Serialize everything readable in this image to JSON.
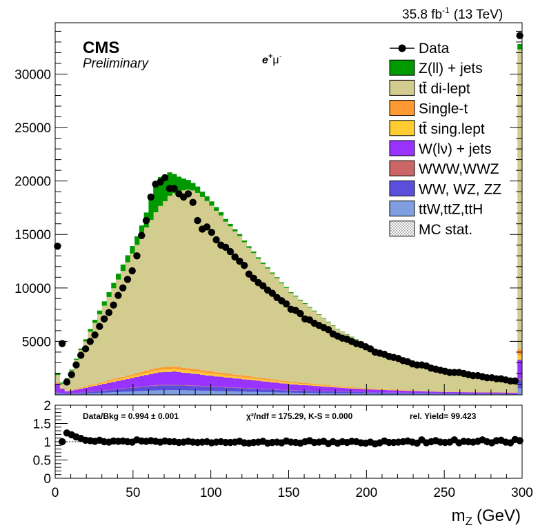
{
  "header": {
    "lumi": "35.8 fb",
    "lumi_exp": "-1",
    "energy": "(13 TeV)",
    "cms": "CMS",
    "preliminary": "Preliminary",
    "channel_base": "e",
    "channel_sup1": "+",
    "channel_mu": "μ",
    "channel_sup2": "-"
  },
  "legend": [
    {
      "label": "Data",
      "color": "#000000",
      "style": "marker"
    },
    {
      "label": "Z(ll) + jets",
      "color": "#009900",
      "style": "fill"
    },
    {
      "label": "tt̄ di-lept",
      "color": "#d2cc8e",
      "style": "fill"
    },
    {
      "label": "Single-t",
      "color": "#ff9933",
      "style": "fill"
    },
    {
      "label": "tt̄ sing.lept",
      "color": "#ffcc33",
      "style": "fill"
    },
    {
      "label": "W(lν) + jets",
      "color": "#9933ff",
      "style": "fill"
    },
    {
      "label": "WWW,WWZ",
      "color": "#cc6666",
      "style": "fill"
    },
    {
      "label": "WW, WZ, ZZ",
      "color": "#5a4fdb",
      "style": "fill"
    },
    {
      "label": "ttW,ttZ,ttH",
      "color": "#7f9fe0",
      "style": "fill"
    },
    {
      "label": "MC stat.",
      "color": "#ffffff",
      "style": "hatch"
    }
  ],
  "ratio_text": {
    "data_bkg": "Data/Bkg = 0.994 ± 0.001",
    "chi2": "χ²/ndf = 175.29,   K-S = 0.000",
    "yield": "rel. Yield= 99.423"
  },
  "chart_data": {
    "type": "bar",
    "xlabel": "m",
    "xlabel_sub": "Z",
    "xlabel_unit": "(GeV)",
    "xlim": [
      0,
      300
    ],
    "ylim": [
      0,
      34800
    ],
    "ratio_ylim": [
      0,
      2
    ],
    "x_ticks": [
      "0",
      "50",
      "100",
      "150",
      "200",
      "250",
      "300"
    ],
    "y_ticks": [
      "5000",
      "10000",
      "15000",
      "20000",
      "25000",
      "30000"
    ],
    "ratio_ticks": [
      "0",
      "0.5",
      "1",
      "1.5",
      "2"
    ],
    "bin_width": 3,
    "data_x": [
      1.5,
      4.5,
      7.5,
      10.5,
      13.5,
      16.5,
      19.5,
      22.5,
      25.5,
      28.5,
      31.5,
      34.5,
      37.5,
      40.5,
      43.5,
      46.5,
      49.5,
      52.5,
      55.5,
      58.5,
      61.5,
      64.5,
      67.5,
      70.5,
      73.5,
      76.5,
      79.5,
      82.5,
      85.5,
      88.5,
      91.5,
      94.5,
      97.5,
      100.5,
      103.5,
      106.5,
      109.5,
      112.5,
      115.5,
      118.5,
      121.5,
      124.5,
      127.5,
      130.5,
      133.5,
      136.5,
      139.5,
      142.5,
      145.5,
      148.5,
      151.5,
      154.5,
      157.5,
      160.5,
      163.5,
      166.5,
      169.5,
      172.5,
      175.5,
      178.5,
      181.5,
      184.5,
      187.5,
      190.5,
      193.5,
      196.5,
      199.5,
      202.5,
      205.5,
      208.5,
      211.5,
      214.5,
      217.5,
      220.5,
      223.5,
      226.5,
      229.5,
      232.5,
      235.5,
      238.5,
      241.5,
      244.5,
      247.5,
      250.5,
      253.5,
      256.5,
      259.5,
      262.5,
      265.5,
      268.5,
      271.5,
      274.5,
      277.5,
      280.5,
      283.5,
      286.5,
      289.5,
      292.5,
      295.5,
      298.5
    ],
    "data_y": [
      13900,
      4800,
      1200,
      1900,
      2800,
      3700,
      4300,
      5000,
      5600,
      6400,
      7100,
      7700,
      8400,
      9300,
      10000,
      10800,
      11600,
      13000,
      14900,
      16300,
      18500,
      19700,
      19900,
      20300,
      19300,
      19300,
      18800,
      18500,
      18800,
      18000,
      16300,
      15500,
      15700,
      15200,
      14500,
      14000,
      13800,
      13400,
      12900,
      12500,
      12100,
      11300,
      10900,
      10500,
      10200,
      9800,
      9500,
      9100,
      8800,
      8500,
      8000,
      7900,
      7600,
      7100,
      7000,
      6700,
      6500,
      6300,
      6100,
      5700,
      5500,
      5300,
      5200,
      5000,
      4800,
      4700,
      4500,
      4300,
      4000,
      3900,
      3800,
      3600,
      3500,
      3400,
      3200,
      3100,
      2900,
      2800,
      2800,
      2700,
      2500,
      2400,
      2300,
      2200,
      2100,
      2100,
      2100,
      2000,
      1900,
      1800,
      1800,
      1700,
      1600,
      1600,
      1500,
      1500,
      1400,
      1300,
      1300,
      33600
    ],
    "ratio_y": [
      1.0,
      1.0,
      1.24,
      1.19,
      1.13,
      1.09,
      1.04,
      1.03,
      1.01,
      1.04,
      1.0,
      0.99,
      1.02,
      1.01,
      1.02,
      1.0,
      0.99,
      1.05,
      1.02,
      1.01,
      1.03,
      1.01,
      0.99,
      1.02,
      1.0,
      1.0,
      0.98,
      0.99,
      1.01,
      0.99,
      0.98,
      0.99,
      1.0,
      0.97,
      0.99,
      1.0,
      0.98,
      0.98,
      0.99,
      1.01,
      0.97,
      0.96,
      0.98,
      0.99,
      1.01,
      0.96,
      0.98,
      0.99,
      0.97,
      1.02,
      0.99,
      0.98,
      0.96,
      1.0,
      1.03,
      0.98,
      0.99,
      1.01,
      0.95,
      1.0,
      0.96,
      1.0,
      0.98,
      1.01,
      1.0,
      0.97,
      0.96,
      0.99,
      0.94,
      0.97,
      1.02,
      0.98,
      0.98,
      0.99,
      1.0,
      1.02,
      0.99,
      0.96,
      1.05,
      0.97,
      1.0,
      1.03,
      0.99,
      0.98,
      0.99,
      1.05,
      0.97,
      1.01,
      1.0,
      0.99,
      1.01,
      1.05,
      1.0,
      0.97,
      1.03,
      1.04,
      0.99,
      0.97,
      1.06,
      1.03
    ],
    "stack": {
      "ttW_ttZ_ttH": [
        120,
        90,
        70,
        80,
        90,
        100,
        120,
        140,
        160,
        180,
        200,
        220,
        240,
        260,
        280,
        300,
        320,
        340,
        360,
        380,
        400,
        420,
        430,
        440,
        440,
        440,
        440,
        430,
        420,
        410,
        400,
        390,
        380,
        370,
        360,
        350,
        340,
        330,
        320,
        310,
        300,
        290,
        280,
        270,
        260,
        250,
        240,
        230,
        220,
        210,
        200,
        195,
        190,
        185,
        180,
        175,
        170,
        165,
        160,
        155,
        150,
        145,
        140,
        135,
        130,
        125,
        120,
        115,
        110,
        105,
        100,
        98,
        96,
        94,
        92,
        90,
        88,
        86,
        84,
        82,
        80,
        78,
        76,
        74,
        72,
        70,
        68,
        66,
        64,
        62,
        60,
        58,
        56,
        54,
        52,
        50,
        48,
        46,
        44,
        600
      ],
      "WW_WZ_ZZ": [
        120,
        80,
        60,
        70,
        90,
        110,
        130,
        150,
        170,
        190,
        210,
        230,
        250,
        270,
        290,
        310,
        330,
        350,
        370,
        390,
        410,
        430,
        440,
        450,
        450,
        450,
        445,
        440,
        430,
        420,
        410,
        400,
        390,
        380,
        370,
        360,
        350,
        340,
        330,
        320,
        310,
        300,
        290,
        280,
        270,
        260,
        250,
        240,
        230,
        220,
        210,
        205,
        200,
        195,
        190,
        185,
        180,
        175,
        170,
        165,
        160,
        155,
        150,
        145,
        140,
        135,
        130,
        125,
        120,
        115,
        110,
        108,
        106,
        104,
        102,
        100,
        98,
        96,
        94,
        92,
        90,
        88,
        86,
        84,
        82,
        80,
        78,
        76,
        74,
        72,
        70,
        68,
        66,
        64,
        62,
        60,
        58,
        56,
        54,
        800
      ],
      "WWW_WWZ": [
        20,
        15,
        10,
        10,
        12,
        14,
        16,
        18,
        20,
        22,
        24,
        26,
        28,
        30,
        32,
        34,
        36,
        38,
        40,
        42,
        44,
        46,
        48,
        50,
        50,
        50,
        50,
        49,
        48,
        47,
        46,
        45,
        44,
        43,
        42,
        41,
        40,
        39,
        38,
        37,
        36,
        35,
        34,
        33,
        32,
        31,
        30,
        29,
        28,
        27,
        26,
        25,
        24,
        23,
        22,
        21,
        20,
        19,
        18,
        17,
        16,
        15,
        14,
        13,
        12,
        11,
        10,
        10,
        10,
        10,
        10,
        10,
        10,
        10,
        10,
        10,
        10,
        10,
        10,
        10,
        10,
        10,
        10,
        10,
        10,
        10,
        10,
        10,
        10,
        10,
        10,
        10,
        10,
        10,
        10,
        10,
        10,
        10,
        10,
        100
      ],
      "W_jets": [
        800,
        400,
        200,
        250,
        300,
        350,
        400,
        450,
        500,
        550,
        600,
        650,
        700,
        750,
        800,
        850,
        900,
        950,
        1000,
        1050,
        1100,
        1150,
        1200,
        1200,
        1200,
        1250,
        1200,
        1150,
        1150,
        1100,
        1100,
        1050,
        1000,
        1000,
        950,
        950,
        900,
        900,
        850,
        850,
        800,
        800,
        750,
        750,
        700,
        700,
        650,
        650,
        600,
        600,
        550,
        550,
        500,
        500,
        480,
        460,
        440,
        420,
        400,
        380,
        360,
        340,
        320,
        300,
        290,
        280,
        270,
        260,
        250,
        240,
        230,
        220,
        210,
        200,
        190,
        180,
        170,
        160,
        150,
        140,
        130,
        120,
        110,
        100,
        100,
        100,
        100,
        100,
        100,
        100,
        100,
        100,
        100,
        100,
        100,
        100,
        100,
        100,
        100,
        1800
      ],
      "tt_semi": [
        60,
        40,
        30,
        40,
        50,
        60,
        70,
        80,
        90,
        100,
        110,
        120,
        130,
        140,
        150,
        160,
        170,
        180,
        190,
        200,
        210,
        220,
        230,
        240,
        240,
        240,
        240,
        235,
        230,
        225,
        220,
        215,
        210,
        205,
        200,
        195,
        190,
        185,
        180,
        175,
        170,
        165,
        160,
        155,
        150,
        145,
        140,
        135,
        130,
        125,
        120,
        115,
        110,
        105,
        100,
        95,
        90,
        85,
        80,
        75,
        70,
        65,
        60,
        55,
        50,
        48,
        46,
        44,
        42,
        40,
        38,
        36,
        34,
        32,
        30,
        28,
        26,
        24,
        22,
        20,
        20,
        20,
        20,
        20,
        20,
        20,
        20,
        20,
        20,
        20,
        20,
        20,
        20,
        20,
        20,
        20,
        20,
        20,
        20,
        400
      ],
      "single_t": [
        40,
        30,
        20,
        30,
        40,
        50,
        60,
        70,
        80,
        90,
        100,
        110,
        120,
        130,
        140,
        150,
        160,
        170,
        180,
        190,
        200,
        210,
        220,
        230,
        230,
        230,
        230,
        225,
        220,
        215,
        210,
        205,
        200,
        195,
        190,
        185,
        180,
        175,
        170,
        165,
        160,
        155,
        150,
        145,
        140,
        135,
        130,
        125,
        120,
        115,
        110,
        105,
        100,
        95,
        90,
        85,
        80,
        75,
        70,
        65,
        60,
        58,
        56,
        54,
        52,
        50,
        48,
        46,
        44,
        42,
        40,
        38,
        36,
        34,
        32,
        30,
        28,
        26,
        24,
        22,
        20,
        20,
        20,
        20,
        20,
        20,
        20,
        20,
        20,
        20,
        20,
        20,
        20,
        20,
        20,
        20,
        20,
        20,
        20,
        600
      ],
      "tt_dilep": [
        700,
        400,
        1100,
        1800,
        2700,
        3500,
        4200,
        5000,
        5700,
        6400,
        7100,
        7800,
        8500,
        9200,
        9900,
        10600,
        11300,
        12000,
        12700,
        13400,
        14000,
        14600,
        15100,
        15500,
        16000,
        16200,
        16400,
        16600,
        16700,
        16700,
        16500,
        16200,
        15900,
        15500,
        15100,
        14700,
        14200,
        13800,
        13400,
        13000,
        12500,
        12000,
        11600,
        11100,
        10700,
        10300,
        9900,
        9500,
        9100,
        8700,
        8300,
        8000,
        7700,
        7400,
        7100,
        6800,
        6500,
        6200,
        5900,
        5600,
        5300,
        5100,
        4900,
        4700,
        4500,
        4300,
        4100,
        3900,
        3700,
        3500,
        3400,
        3200,
        3000,
        2900,
        2800,
        2700,
        2600,
        2500,
        2400,
        2300,
        2200,
        2100,
        2000,
        1900,
        1800,
        1700,
        1700,
        1600,
        1500,
        1500,
        1400,
        1400,
        1300,
        1300,
        1200,
        1200,
        1100,
        1100,
        1050,
        28000
      ],
      "Z_jets": [
        200,
        100,
        60,
        80,
        100,
        150,
        200,
        250,
        300,
        350,
        400,
        450,
        500,
        550,
        600,
        650,
        700,
        800,
        1000,
        1400,
        1900,
        2400,
        2700,
        2500,
        2200,
        1800,
        1400,
        1100,
        900,
        700,
        600,
        500,
        450,
        400,
        350,
        300,
        250,
        220,
        200,
        180,
        160,
        150,
        140,
        130,
        120,
        110,
        100,
        95,
        90,
        85,
        80,
        75,
        70,
        65,
        60,
        55,
        50,
        48,
        46,
        44,
        42,
        40,
        38,
        36,
        34,
        32,
        30,
        28,
        26,
        24,
        22,
        20,
        20,
        20,
        20,
        20,
        20,
        20,
        20,
        20,
        20,
        20,
        20,
        20,
        20,
        20,
        20,
        20,
        20,
        20,
        20,
        20,
        20,
        20,
        20,
        20,
        20,
        20,
        20,
        500
      ]
    },
    "stack_order": [
      "ttW_ttZ_ttH",
      "WW_WZ_ZZ",
      "WWW_WWZ",
      "W_jets",
      "tt_semi",
      "single_t",
      "tt_dilep",
      "Z_jets"
    ],
    "stack_colors": {
      "ttW_ttZ_ttH": "#7f9fe0",
      "WW_WZ_ZZ": "#5a4fdb",
      "WWW_WWZ": "#cc6666",
      "W_jets": "#9933ff",
      "tt_semi": "#ffcc33",
      "single_t": "#ff9933",
      "tt_dilep": "#d2cc8e",
      "Z_jets": "#009900"
    }
  }
}
